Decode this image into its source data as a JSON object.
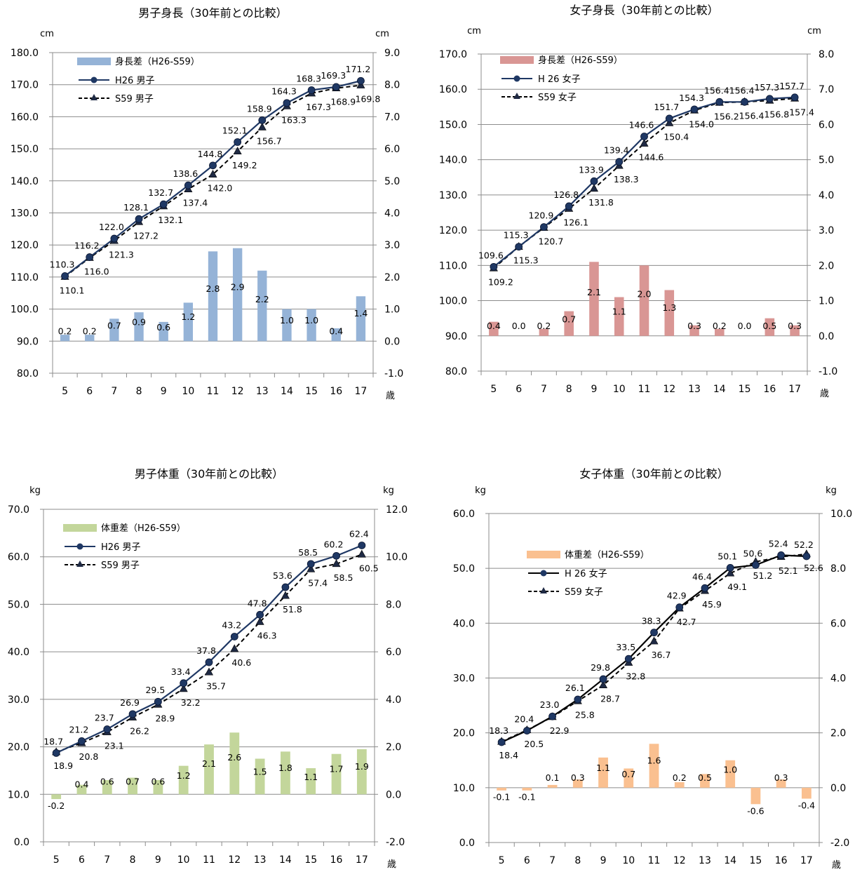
{
  "chart_data": [
    {
      "type": "bar+line",
      "title": "男子身長（30年前との比較）",
      "ylabel_left": "cm",
      "ylabel_right": "cm",
      "xlabel": "歳",
      "ylim_left": [
        80,
        180
      ],
      "ylim_right": [
        -1,
        9
      ],
      "yticks_left": [
        "180.0",
        "170.0",
        "160.0",
        "150.0",
        "140.0",
        "130.0",
        "120.0",
        "110.0",
        "100.0",
        "90.0",
        "80.0"
      ],
      "yticks_right": [
        "9.0",
        "8.0",
        "7.0",
        "6.0",
        "5.0",
        "4.0",
        "3.0",
        "2.0",
        "1.0",
        "0.0",
        "-1.0"
      ],
      "categories": [
        "5",
        "6",
        "7",
        "8",
        "9",
        "10",
        "11",
        "12",
        "13",
        "14",
        "15",
        "16",
        "17"
      ],
      "grid": "horizontal",
      "legend_position": "top-left",
      "bar_color": "#95b3d7",
      "line_color": "#1f3864",
      "bar_series": {
        "name": "身長差（H26-S59）",
        "values": [
          0.2,
          0.2,
          0.7,
          0.9,
          0.6,
          1.2,
          2.8,
          2.9,
          2.2,
          1.0,
          1.0,
          0.4,
          1.4
        ],
        "labels": [
          "0.2",
          "0.2",
          "0.7",
          "0.9",
          "0.6",
          "1.2",
          "2.8",
          "2.9",
          "2.2",
          "1.0",
          "1.0",
          "0.4",
          "1.4"
        ]
      },
      "line_series": [
        {
          "name": "H26 男子",
          "values": [
            110.3,
            116.2,
            122.0,
            128.1,
            132.7,
            138.6,
            144.8,
            152.1,
            158.9,
            164.3,
            168.3,
            169.3,
            171.2
          ],
          "labels": [
            "110.3",
            "116.2",
            "122.0",
            "128.1",
            "132.7",
            "138.6",
            "144.8",
            "152.1",
            "158.9",
            "164.3",
            "168.3",
            "169.3",
            "171.2"
          ]
        },
        {
          "name": "S59 男子",
          "values": [
            110.1,
            116.0,
            121.3,
            127.2,
            132.1,
            137.4,
            142.0,
            149.2,
            156.7,
            163.3,
            167.3,
            168.9,
            169.8
          ],
          "labels": [
            "110.1",
            "116.0",
            "121.3",
            "127.2",
            "132.1",
            "137.4",
            "142.0",
            "149.2",
            "156.7",
            "163.3",
            "167.3",
            "168.9",
            "169.8"
          ]
        }
      ]
    },
    {
      "type": "bar+line",
      "title": "女子身長（30年前との比較）",
      "ylabel_left": "cm",
      "ylabel_right": "cm",
      "xlabel": "歳",
      "ylim_left": [
        80,
        170
      ],
      "ylim_right": [
        -1,
        8
      ],
      "yticks_left": [
        "170.0",
        "160.0",
        "150.0",
        "140.0",
        "130.0",
        "120.0",
        "110.0",
        "100.0",
        "90.0",
        "80.0"
      ],
      "yticks_right": [
        "8.0",
        "7.0",
        "6.0",
        "5.0",
        "4.0",
        "3.0",
        "2.0",
        "1.0",
        "0.0",
        "-1.0"
      ],
      "categories": [
        "5",
        "6",
        "7",
        "8",
        "9",
        "10",
        "11",
        "12",
        "13",
        "14",
        "15",
        "16",
        "17"
      ],
      "grid": "horizontal",
      "legend_position": "top-left",
      "bar_color": "#d99694",
      "line_color": "#1f3864",
      "bar_series": {
        "name": "身長差（H26-S59）",
        "values": [
          0.4,
          0.0,
          0.2,
          0.7,
          2.1,
          1.1,
          2.0,
          1.3,
          0.3,
          0.2,
          0.0,
          0.5,
          0.3
        ],
        "labels": [
          "0.4",
          "0.0",
          "0.2",
          "0.7",
          "2.1",
          "1.1",
          "2.0",
          "1.3",
          "0.3",
          "0.2",
          "0.0",
          "0.5",
          "0.3"
        ]
      },
      "line_series": [
        {
          "name": "H 26 女子",
          "values": [
            109.6,
            115.3,
            120.9,
            126.8,
            133.9,
            139.4,
            146.6,
            151.7,
            154.3,
            156.4,
            156.4,
            157.3,
            157.7
          ],
          "labels": [
            "109.6",
            "115.3",
            "120.9",
            "126.8",
            "133.9",
            "139.4",
            "146.6",
            "151.7",
            "154.3",
            "156.4",
            "156.4",
            "157.3",
            "157.7"
          ]
        },
        {
          "name": "S59 女子",
          "values": [
            109.2,
            115.3,
            120.7,
            126.1,
            131.8,
            138.3,
            144.6,
            150.4,
            154.0,
            156.2,
            156.4,
            156.8,
            157.4
          ],
          "labels": [
            "109.2",
            "115.3",
            "120.7",
            "126.1",
            "131.8",
            "138.3",
            "144.6",
            "150.4",
            "154.0",
            "156.2",
            "156.4",
            "156.8",
            "157.4"
          ]
        }
      ]
    },
    {
      "type": "bar+line",
      "title": "男子体重（30年前との比較）",
      "ylabel_left": "kg",
      "ylabel_right": "kg",
      "xlabel": "歳",
      "ylim_left": [
        0,
        70
      ],
      "ylim_right": [
        -2,
        12
      ],
      "yticks_left": [
        "70.0",
        "60.0",
        "50.0",
        "40.0",
        "30.0",
        "20.0",
        "10.0",
        "0.0"
      ],
      "yticks_right": [
        "12.0",
        "10.0",
        "8.0",
        "6.0",
        "4.0",
        "2.0",
        "0.0",
        "-2.0"
      ],
      "categories": [
        "5",
        "6",
        "7",
        "8",
        "9",
        "10",
        "11",
        "12",
        "13",
        "14",
        "15",
        "16",
        "17"
      ],
      "grid": "horizontal",
      "legend_position": "top-left",
      "bar_color": "#c3d69b",
      "line_color": "#1f3864",
      "bar_series": {
        "name": "体重差（H26-S59）",
        "values": [
          -0.2,
          0.4,
          0.6,
          0.7,
          0.6,
          1.2,
          2.1,
          2.6,
          1.5,
          1.8,
          1.1,
          1.7,
          1.9
        ],
        "labels": [
          "-0.2",
          "0.4",
          "0.6",
          "0.7",
          "0.6",
          "1.2",
          "2.1",
          "2.6",
          "1.5",
          "1.8",
          "1.1",
          "1.7",
          "1.9"
        ]
      },
      "line_series": [
        {
          "name": "H26 男子",
          "values": [
            18.7,
            21.2,
            23.7,
            26.9,
            29.5,
            33.4,
            37.8,
            43.2,
            47.8,
            53.6,
            58.5,
            60.2,
            62.4
          ],
          "labels": [
            "18.7",
            "21.2",
            "23.7",
            "26.9",
            "29.5",
            "33.4",
            "37.8",
            "43.2",
            "47.8",
            "53.6",
            "58.5",
            "60.2",
            "62.4"
          ]
        },
        {
          "name": "S59 男子",
          "values": [
            18.9,
            20.8,
            23.1,
            26.2,
            28.9,
            32.2,
            35.7,
            40.6,
            46.3,
            51.8,
            57.4,
            58.5,
            60.5
          ],
          "labels": [
            "18.9",
            "20.8",
            "23.1",
            "26.2",
            "28.9",
            "32.2",
            "35.7",
            "40.6",
            "46.3",
            "51.8",
            "57.4",
            "58.5",
            "60.5"
          ]
        }
      ]
    },
    {
      "type": "bar+line",
      "title": "女子体重（30年前との比較）",
      "ylabel_left": "kg",
      "ylabel_right": "kg",
      "xlabel": "歳",
      "ylim_left": [
        0,
        60
      ],
      "ylim_right": [
        -2,
        10
      ],
      "yticks_left": [
        "60.0",
        "50.0",
        "40.0",
        "30.0",
        "20.0",
        "10.0",
        "0.0"
      ],
      "yticks_right": [
        "10.0",
        "8.0",
        "6.0",
        "4.0",
        "2.0",
        "0.0",
        "-2.0"
      ],
      "categories": [
        "5",
        "6",
        "7",
        "8",
        "9",
        "10",
        "11",
        "12",
        "13",
        "14",
        "15",
        "16",
        "17"
      ],
      "grid": "horizontal",
      "legend_position": "top-left",
      "bar_color": "#fac090",
      "line_color": "#000000",
      "bar_series": {
        "name": "体重差（H26-S59）",
        "values": [
          -0.1,
          -0.1,
          0.1,
          0.3,
          1.1,
          0.7,
          1.6,
          0.2,
          0.5,
          1.0,
          -0.6,
          0.3,
          -0.4
        ],
        "labels": [
          "-0.1",
          "-0.1",
          "0.1",
          "0.3",
          "1.1",
          "0.7",
          "1.6",
          "0.2",
          "0.5",
          "1.0",
          "-0.6",
          "0.3",
          "-0.4"
        ]
      },
      "line_series": [
        {
          "name": "H 26 女子",
          "values": [
            18.3,
            20.4,
            23.0,
            26.1,
            29.8,
            33.5,
            38.3,
            42.9,
            46.4,
            50.1,
            50.6,
            52.4,
            52.2
          ],
          "labels": [
            "18.3",
            "20.4",
            "23.0",
            "26.1",
            "29.8",
            "33.5",
            "38.3",
            "42.9",
            "46.4",
            "50.1",
            "50.6",
            "52.4",
            "52.2"
          ]
        },
        {
          "name": "S59 女子",
          "values": [
            18.4,
            20.5,
            22.9,
            25.8,
            28.7,
            32.8,
            36.7,
            42.7,
            45.9,
            49.1,
            51.2,
            52.1,
            52.6
          ],
          "labels": [
            "18.4",
            "20.5",
            "22.9",
            "25.8",
            "28.7",
            "32.8",
            "36.7",
            "42.7",
            "45.9",
            "49.1",
            "51.2",
            "52.1",
            "52.6"
          ]
        }
      ]
    }
  ]
}
